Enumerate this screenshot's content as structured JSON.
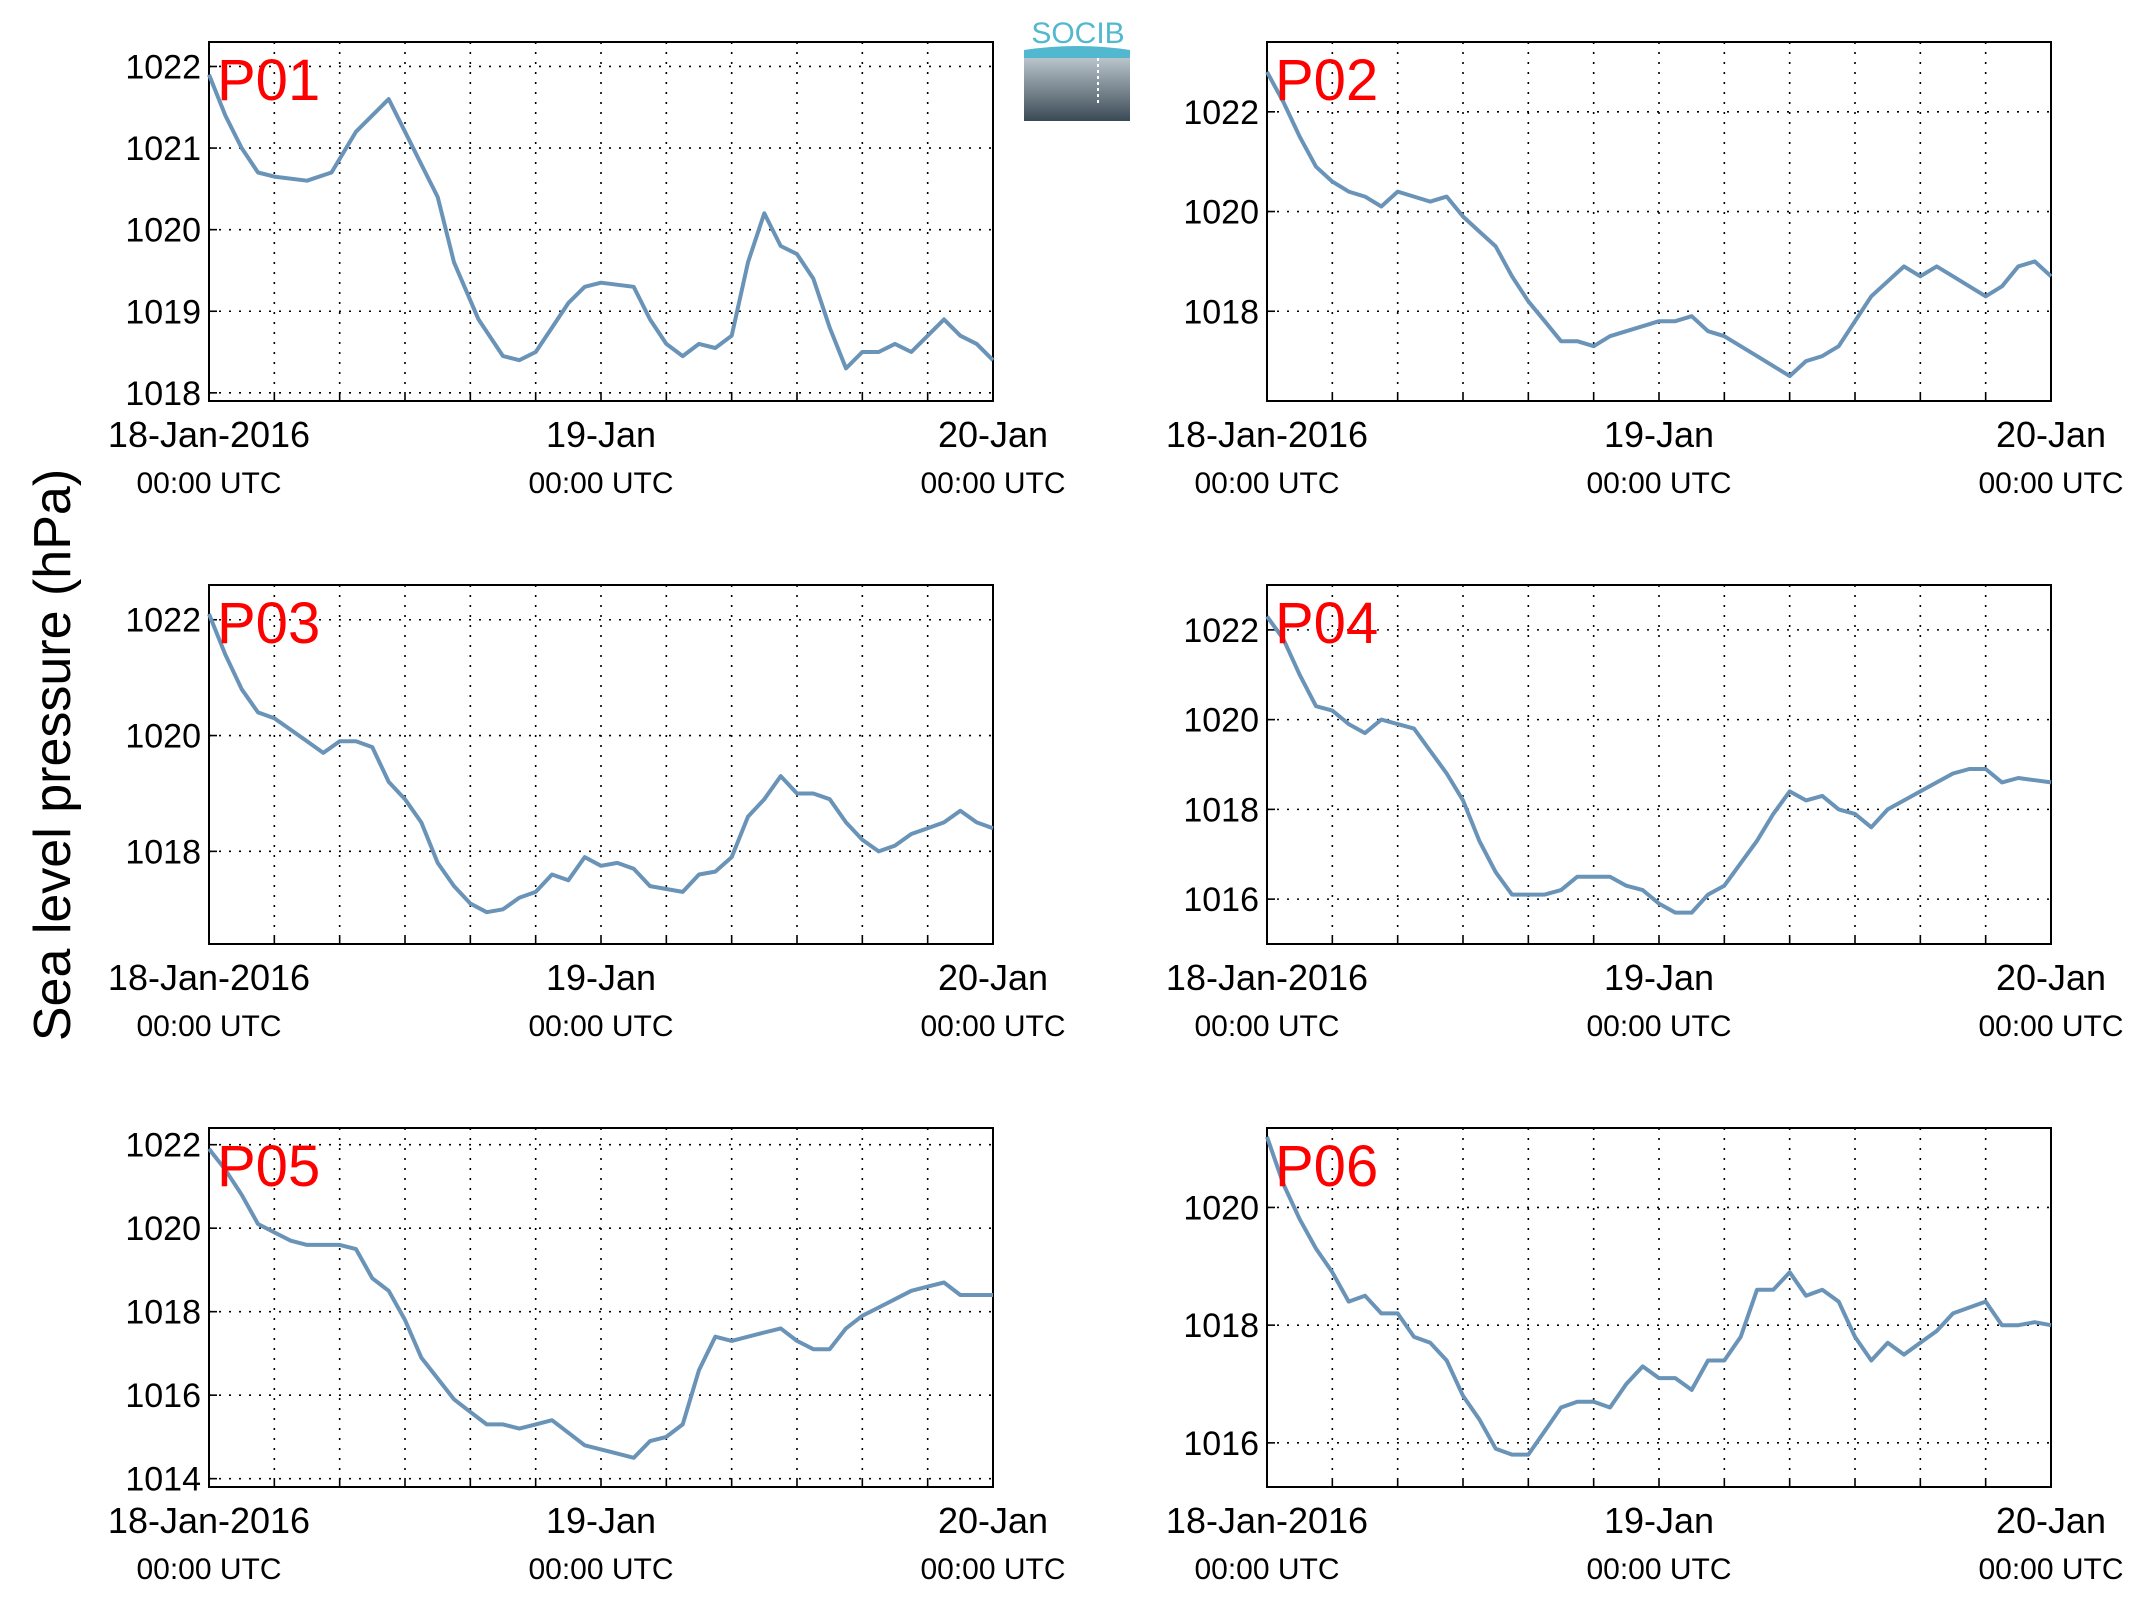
{
  "figure": {
    "ylabel": "Sea level pressure (hPa)",
    "logo": "SOCIB",
    "line_color": "#6a93b8",
    "label_color": "#ff0000"
  },
  "chart_data": [
    {
      "type": "line",
      "panel_label": "P01",
      "xlim": [
        "2016-01-18 00:00",
        "2016-01-20 00:00"
      ],
      "x_ticks": [
        {
          "date": "2016-01-18 00:00",
          "label": "18-Jan-2016",
          "sublabel": "00:00 UTC"
        },
        {
          "date": "2016-01-19 00:00",
          "label": "19-Jan",
          "sublabel": "00:00 UTC"
        },
        {
          "date": "2016-01-20 00:00",
          "label": "20-Jan",
          "sublabel": "00:00 UTC"
        }
      ],
      "ylim": [
        1017.9,
        1022.3
      ],
      "yticks": [
        1018,
        1019,
        1020,
        1021,
        1022
      ],
      "grid": true,
      "x": [
        "2016-01-18 00:00",
        "2016-01-18 01:00",
        "2016-01-18 02:00",
        "2016-01-18 03:00",
        "2016-01-18 04:00",
        "2016-01-18 06:00",
        "2016-01-18 07:30",
        "2016-01-18 09:00",
        "2016-01-18 10:00",
        "2016-01-18 11:00",
        "2016-01-18 12:00",
        "2016-01-18 13:00",
        "2016-01-18 14:00",
        "2016-01-18 15:00",
        "2016-01-18 16:30",
        "2016-01-18 18:00",
        "2016-01-18 19:00",
        "2016-01-18 20:00",
        "2016-01-18 21:00",
        "2016-01-18 22:00",
        "2016-01-18 23:00",
        "2016-01-19 00:00",
        "2016-01-19 02:00",
        "2016-01-19 03:00",
        "2016-01-19 04:00",
        "2016-01-19 05:00",
        "2016-01-19 06:00",
        "2016-01-19 07:00",
        "2016-01-19 08:00",
        "2016-01-19 09:00",
        "2016-01-19 10:00",
        "2016-01-19 11:00",
        "2016-01-19 12:00",
        "2016-01-19 13:00",
        "2016-01-19 14:00",
        "2016-01-19 15:00",
        "2016-01-19 16:00",
        "2016-01-19 17:00",
        "2016-01-19 18:00",
        "2016-01-19 19:00",
        "2016-01-19 20:00",
        "2016-01-19 21:00",
        "2016-01-19 22:00",
        "2016-01-19 23:00",
        "2016-01-20 00:00"
      ],
      "series": [
        {
          "values": [
            1021.9,
            1021.4,
            1021.0,
            1020.7,
            1020.65,
            1020.6,
            1020.7,
            1021.2,
            1021.4,
            1021.6,
            1021.2,
            1020.8,
            1020.4,
            1019.6,
            1018.9,
            1018.45,
            1018.4,
            1018.5,
            1018.8,
            1019.1,
            1019.3,
            1019.35,
            1019.3,
            1018.9,
            1018.6,
            1018.45,
            1018.6,
            1018.55,
            1018.7,
            1019.6,
            1020.2,
            1019.8,
            1019.7,
            1019.4,
            1018.8,
            1018.3,
            1018.5,
            1018.5,
            1018.6,
            1018.5,
            1018.7,
            1018.9,
            1018.7,
            1018.6,
            1018.4
          ]
        }
      ]
    },
    {
      "type": "line",
      "panel_label": "P02",
      "xlim": [
        "2016-01-18 00:00",
        "2016-01-20 00:00"
      ],
      "x_ticks": [
        {
          "date": "2016-01-18 00:00",
          "label": "18-Jan-2016",
          "sublabel": "00:00 UTC"
        },
        {
          "date": "2016-01-19 00:00",
          "label": "19-Jan",
          "sublabel": "00:00 UTC"
        },
        {
          "date": "2016-01-20 00:00",
          "label": "20-Jan",
          "sublabel": "00:00 UTC"
        }
      ],
      "ylim": [
        1016.2,
        1023.4
      ],
      "yticks": [
        1018,
        1020,
        1022
      ],
      "grid": true,
      "x": [
        "2016-01-18 00:00",
        "2016-01-18 01:00",
        "2016-01-18 02:00",
        "2016-01-18 03:00",
        "2016-01-18 04:00",
        "2016-01-18 05:00",
        "2016-01-18 06:00",
        "2016-01-18 07:00",
        "2016-01-18 08:00",
        "2016-01-18 09:00",
        "2016-01-18 10:00",
        "2016-01-18 11:00",
        "2016-01-18 12:00",
        "2016-01-18 13:00",
        "2016-01-18 14:00",
        "2016-01-18 15:00",
        "2016-01-18 16:00",
        "2016-01-18 17:00",
        "2016-01-18 18:00",
        "2016-01-18 19:00",
        "2016-01-18 20:00",
        "2016-01-18 21:00",
        "2016-01-18 22:00",
        "2016-01-18 23:00",
        "2016-01-19 00:00",
        "2016-01-19 01:00",
        "2016-01-19 02:00",
        "2016-01-19 03:00",
        "2016-01-19 04:00",
        "2016-01-19 05:00",
        "2016-01-19 06:00",
        "2016-01-19 07:00",
        "2016-01-19 08:00",
        "2016-01-19 09:00",
        "2016-01-19 10:00",
        "2016-01-19 11:00",
        "2016-01-19 12:00",
        "2016-01-19 13:00",
        "2016-01-19 14:00",
        "2016-01-19 15:00",
        "2016-01-19 16:00",
        "2016-01-19 17:00",
        "2016-01-19 18:00",
        "2016-01-19 19:00",
        "2016-01-19 20:00",
        "2016-01-19 21:00",
        "2016-01-19 22:00",
        "2016-01-19 23:00",
        "2016-01-20 00:00"
      ],
      "series": [
        {
          "values": [
            1022.8,
            1022.2,
            1021.5,
            1020.9,
            1020.6,
            1020.4,
            1020.3,
            1020.1,
            1020.4,
            1020.3,
            1020.2,
            1020.3,
            1019.9,
            1019.6,
            1019.3,
            1018.7,
            1018.2,
            1017.8,
            1017.4,
            1017.4,
            1017.3,
            1017.5,
            1017.6,
            1017.7,
            1017.8,
            1017.8,
            1017.9,
            1017.6,
            1017.5,
            1017.3,
            1017.1,
            1016.9,
            1016.7,
            1017.0,
            1017.1,
            1017.3,
            1017.8,
            1018.3,
            1018.6,
            1018.9,
            1018.7,
            1018.9,
            1018.7,
            1018.5,
            1018.3,
            1018.5,
            1018.9,
            1019.0,
            1018.7
          ]
        }
      ]
    },
    {
      "type": "line",
      "panel_label": "P03",
      "xlim": [
        "2016-01-18 00:00",
        "2016-01-20 00:00"
      ],
      "x_ticks": [
        {
          "date": "2016-01-18 00:00",
          "label": "18-Jan-2016",
          "sublabel": "00:00 UTC"
        },
        {
          "date": "2016-01-19 00:00",
          "label": "19-Jan",
          "sublabel": "00:00 UTC"
        },
        {
          "date": "2016-01-20 00:00",
          "label": "20-Jan",
          "sublabel": "00:00 UTC"
        }
      ],
      "ylim": [
        1016.4,
        1022.6
      ],
      "yticks": [
        1018,
        1020,
        1022
      ],
      "grid": true,
      "x": [
        "2016-01-18 00:00",
        "2016-01-18 01:00",
        "2016-01-18 02:00",
        "2016-01-18 03:00",
        "2016-01-18 04:00",
        "2016-01-18 05:00",
        "2016-01-18 06:00",
        "2016-01-18 07:00",
        "2016-01-18 08:00",
        "2016-01-18 09:00",
        "2016-01-18 10:00",
        "2016-01-18 11:00",
        "2016-01-18 12:00",
        "2016-01-18 13:00",
        "2016-01-18 14:00",
        "2016-01-18 15:00",
        "2016-01-18 16:00",
        "2016-01-18 17:00",
        "2016-01-18 18:00",
        "2016-01-18 19:00",
        "2016-01-18 20:00",
        "2016-01-18 21:00",
        "2016-01-18 22:00",
        "2016-01-18 23:00",
        "2016-01-19 00:00",
        "2016-01-19 01:00",
        "2016-01-19 02:00",
        "2016-01-19 03:00",
        "2016-01-19 04:00",
        "2016-01-19 05:00",
        "2016-01-19 06:00",
        "2016-01-19 07:00",
        "2016-01-19 08:00",
        "2016-01-19 09:00",
        "2016-01-19 10:00",
        "2016-01-19 11:00",
        "2016-01-19 12:00",
        "2016-01-19 13:00",
        "2016-01-19 14:00",
        "2016-01-19 15:00",
        "2016-01-19 16:00",
        "2016-01-19 17:00",
        "2016-01-19 18:00",
        "2016-01-19 19:00",
        "2016-01-19 20:00",
        "2016-01-19 21:00",
        "2016-01-19 22:00",
        "2016-01-19 23:00",
        "2016-01-20 00:00"
      ],
      "series": [
        {
          "values": [
            1022.1,
            1021.4,
            1020.8,
            1020.4,
            1020.3,
            1020.1,
            1019.9,
            1019.7,
            1019.9,
            1019.9,
            1019.8,
            1019.2,
            1018.9,
            1018.5,
            1017.8,
            1017.4,
            1017.1,
            1016.95,
            1017.0,
            1017.2,
            1017.3,
            1017.6,
            1017.5,
            1017.9,
            1017.75,
            1017.8,
            1017.7,
            1017.4,
            1017.35,
            1017.3,
            1017.6,
            1017.65,
            1017.9,
            1018.6,
            1018.9,
            1019.3,
            1019.0,
            1019.0,
            1018.9,
            1018.5,
            1018.2,
            1018.0,
            1018.1,
            1018.3,
            1018.4,
            1018.5,
            1018.7,
            1018.5,
            1018.4
          ]
        }
      ]
    },
    {
      "type": "line",
      "panel_label": "P04",
      "xlim": [
        "2016-01-18 00:00",
        "2016-01-20 00:00"
      ],
      "x_ticks": [
        {
          "date": "2016-01-18 00:00",
          "label": "18-Jan-2016",
          "sublabel": "00:00 UTC"
        },
        {
          "date": "2016-01-19 00:00",
          "label": "19-Jan",
          "sublabel": "00:00 UTC"
        },
        {
          "date": "2016-01-20 00:00",
          "label": "20-Jan",
          "sublabel": "00:00 UTC"
        }
      ],
      "ylim": [
        1015.0,
        1023.0
      ],
      "yticks": [
        1016,
        1018,
        1020,
        1022
      ],
      "grid": true,
      "x": [
        "2016-01-18 00:00",
        "2016-01-18 01:00",
        "2016-01-18 02:00",
        "2016-01-18 03:00",
        "2016-01-18 04:00",
        "2016-01-18 05:00",
        "2016-01-18 06:00",
        "2016-01-18 07:00",
        "2016-01-18 08:00",
        "2016-01-18 09:00",
        "2016-01-18 10:00",
        "2016-01-18 11:00",
        "2016-01-18 12:00",
        "2016-01-18 13:00",
        "2016-01-18 14:00",
        "2016-01-18 15:00",
        "2016-01-18 16:00",
        "2016-01-18 17:00",
        "2016-01-18 18:00",
        "2016-01-18 19:00",
        "2016-01-18 20:00",
        "2016-01-18 21:00",
        "2016-01-18 22:00",
        "2016-01-18 23:00",
        "2016-01-19 00:00",
        "2016-01-19 01:00",
        "2016-01-19 02:00",
        "2016-01-19 03:00",
        "2016-01-19 04:00",
        "2016-01-19 05:00",
        "2016-01-19 06:00",
        "2016-01-19 07:00",
        "2016-01-19 08:00",
        "2016-01-19 09:00",
        "2016-01-19 10:00",
        "2016-01-19 11:00",
        "2016-01-19 12:00",
        "2016-01-19 13:00",
        "2016-01-19 14:00",
        "2016-01-19 15:00",
        "2016-01-19 16:00",
        "2016-01-19 17:00",
        "2016-01-19 18:00",
        "2016-01-19 19:00",
        "2016-01-19 20:00",
        "2016-01-19 21:00",
        "2016-01-19 22:00",
        "2016-01-19 23:00",
        "2016-01-20 00:00"
      ],
      "series": [
        {
          "values": [
            1022.3,
            1021.8,
            1021.0,
            1020.3,
            1020.2,
            1019.9,
            1019.7,
            1020.0,
            1019.9,
            1019.8,
            1019.3,
            1018.8,
            1018.2,
            1017.3,
            1016.6,
            1016.1,
            1016.1,
            1016.1,
            1016.2,
            1016.5,
            1016.5,
            1016.5,
            1016.3,
            1016.2,
            1015.9,
            1015.7,
            1015.7,
            1016.1,
            1016.3,
            1016.8,
            1017.3,
            1017.9,
            1018.4,
            1018.2,
            1018.3,
            1018.0,
            1017.9,
            1017.6,
            1018.0,
            1018.2,
            1018.4,
            1018.6,
            1018.8,
            1018.9,
            1018.9,
            1018.6,
            1018.7,
            1018.65,
            1018.6
          ]
        }
      ]
    },
    {
      "type": "line",
      "panel_label": "P05",
      "xlim": [
        "2016-01-18 00:00",
        "2016-01-20 00:00"
      ],
      "x_ticks": [
        {
          "date": "2016-01-18 00:00",
          "label": "18-Jan-2016",
          "sublabel": "00:00 UTC"
        },
        {
          "date": "2016-01-19 00:00",
          "label": "19-Jan",
          "sublabel": "00:00 UTC"
        },
        {
          "date": "2016-01-20 00:00",
          "label": "20-Jan",
          "sublabel": "00:00 UTC"
        }
      ],
      "ylim": [
        1013.8,
        1022.4
      ],
      "yticks": [
        1014,
        1016,
        1018,
        1020,
        1022
      ],
      "grid": true,
      "x": [
        "2016-01-18 00:00",
        "2016-01-18 01:00",
        "2016-01-18 02:00",
        "2016-01-18 03:00",
        "2016-01-18 04:00",
        "2016-01-18 05:00",
        "2016-01-18 06:00",
        "2016-01-18 07:00",
        "2016-01-18 08:00",
        "2016-01-18 09:00",
        "2016-01-18 10:00",
        "2016-01-18 11:00",
        "2016-01-18 12:00",
        "2016-01-18 13:00",
        "2016-01-18 14:00",
        "2016-01-18 15:00",
        "2016-01-18 16:00",
        "2016-01-18 17:00",
        "2016-01-18 18:00",
        "2016-01-18 19:00",
        "2016-01-18 20:00",
        "2016-01-18 21:00",
        "2016-01-18 22:00",
        "2016-01-18 23:00",
        "2016-01-19 00:00",
        "2016-01-19 01:00",
        "2016-01-19 02:00",
        "2016-01-19 03:00",
        "2016-01-19 04:00",
        "2016-01-19 05:00",
        "2016-01-19 06:00",
        "2016-01-19 07:00",
        "2016-01-19 08:00",
        "2016-01-19 09:00",
        "2016-01-19 10:00",
        "2016-01-19 11:00",
        "2016-01-19 12:00",
        "2016-01-19 13:00",
        "2016-01-19 14:00",
        "2016-01-19 15:00",
        "2016-01-19 16:00",
        "2016-01-19 17:00",
        "2016-01-19 18:00",
        "2016-01-19 19:00",
        "2016-01-19 20:00",
        "2016-01-19 21:00",
        "2016-01-19 22:00",
        "2016-01-19 23:00",
        "2016-01-20 00:00"
      ],
      "series": [
        {
          "values": [
            1021.9,
            1021.4,
            1020.8,
            1020.1,
            1019.9,
            1019.7,
            1019.6,
            1019.6,
            1019.6,
            1019.5,
            1018.8,
            1018.5,
            1017.8,
            1016.9,
            1016.4,
            1015.9,
            1015.6,
            1015.3,
            1015.3,
            1015.2,
            1015.3,
            1015.4,
            1015.1,
            1014.8,
            1014.7,
            1014.6,
            1014.5,
            1014.9,
            1015.0,
            1015.3,
            1016.6,
            1017.4,
            1017.3,
            1017.4,
            1017.5,
            1017.6,
            1017.3,
            1017.1,
            1017.1,
            1017.6,
            1017.9,
            1018.1,
            1018.3,
            1018.5,
            1018.6,
            1018.7,
            1018.4,
            1018.4,
            1018.4
          ]
        }
      ]
    },
    {
      "type": "line",
      "panel_label": "P06",
      "xlim": [
        "2016-01-18 00:00",
        "2016-01-20 00:00"
      ],
      "x_ticks": [
        {
          "date": "2016-01-18 00:00",
          "label": "18-Jan-2016",
          "sublabel": "00:00 UTC"
        },
        {
          "date": "2016-01-19 00:00",
          "label": "19-Jan",
          "sublabel": "00:00 UTC"
        },
        {
          "date": "2016-01-20 00:00",
          "label": "20-Jan",
          "sublabel": "00:00 UTC"
        }
      ],
      "ylim": [
        1015.25,
        1021.35
      ],
      "yticks": [
        1016,
        1018,
        1020
      ],
      "grid": true,
      "x": [
        "2016-01-18 00:00",
        "2016-01-18 01:00",
        "2016-01-18 02:00",
        "2016-01-18 03:00",
        "2016-01-18 04:00",
        "2016-01-18 05:00",
        "2016-01-18 06:00",
        "2016-01-18 07:00",
        "2016-01-18 08:00",
        "2016-01-18 09:00",
        "2016-01-18 10:00",
        "2016-01-18 11:00",
        "2016-01-18 12:00",
        "2016-01-18 13:00",
        "2016-01-18 14:00",
        "2016-01-18 15:00",
        "2016-01-18 16:00",
        "2016-01-18 17:00",
        "2016-01-18 18:00",
        "2016-01-18 19:00",
        "2016-01-18 20:00",
        "2016-01-18 21:00",
        "2016-01-18 22:00",
        "2016-01-18 23:00",
        "2016-01-19 00:00",
        "2016-01-19 01:00",
        "2016-01-19 02:00",
        "2016-01-19 03:00",
        "2016-01-19 04:00",
        "2016-01-19 05:00",
        "2016-01-19 06:00",
        "2016-01-19 07:00",
        "2016-01-19 08:00",
        "2016-01-19 09:00",
        "2016-01-19 10:00",
        "2016-01-19 11:00",
        "2016-01-19 12:00",
        "2016-01-19 13:00",
        "2016-01-19 14:00",
        "2016-01-19 15:00",
        "2016-01-19 16:00",
        "2016-01-19 17:00",
        "2016-01-19 18:00",
        "2016-01-19 19:00",
        "2016-01-19 20:00",
        "2016-01-19 21:00",
        "2016-01-19 22:00",
        "2016-01-19 23:00",
        "2016-01-20 00:00"
      ],
      "series": [
        {
          "values": [
            1021.2,
            1020.4,
            1019.8,
            1019.3,
            1018.9,
            1018.4,
            1018.5,
            1018.2,
            1018.2,
            1017.8,
            1017.7,
            1017.4,
            1016.8,
            1016.4,
            1015.9,
            1015.8,
            1015.8,
            1016.2,
            1016.6,
            1016.7,
            1016.7,
            1016.6,
            1017.0,
            1017.3,
            1017.1,
            1017.1,
            1016.9,
            1017.4,
            1017.4,
            1017.8,
            1018.6,
            1018.6,
            1018.9,
            1018.5,
            1018.6,
            1018.4,
            1017.8,
            1017.4,
            1017.7,
            1017.5,
            1017.7,
            1017.9,
            1018.2,
            1018.3,
            1018.4,
            1018.0,
            1018.0,
            1018.05,
            1018.0
          ]
        }
      ]
    }
  ]
}
